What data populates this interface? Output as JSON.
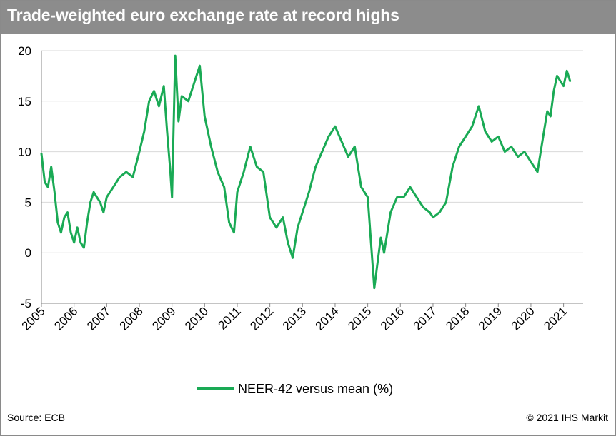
{
  "title": "Trade-weighted euro exchange rate at record highs",
  "source": "Source: ECB",
  "copyright": "© 2021 IHS Markit",
  "colors": {
    "title_bg": "#8c8c8c",
    "series": "#1aaa55",
    "grid": "#d9d9d9"
  },
  "chart_data": {
    "type": "line",
    "title": "Trade-weighted euro exchange rate at record highs",
    "xlabel": "",
    "ylabel": "",
    "xlim": [
      2005,
      2021.6
    ],
    "ylim": [
      -5,
      20
    ],
    "yticks": [
      -5,
      0,
      5,
      10,
      15,
      20
    ],
    "xticks": [
      "2005",
      "2006",
      "2007",
      "2008",
      "2009",
      "2010",
      "2011",
      "2012",
      "2013",
      "2014",
      "2015",
      "2016",
      "2017",
      "2018",
      "2019",
      "2020",
      "2021"
    ],
    "grid": "horizontal",
    "legend_position": "bottom",
    "series": [
      {
        "name": "NEER-42 versus mean (%)",
        "color": "#1aaa55",
        "x": [
          2005.0,
          2005.1,
          2005.2,
          2005.3,
          2005.4,
          2005.5,
          2005.6,
          2005.7,
          2005.8,
          2005.9,
          2006.0,
          2006.1,
          2006.2,
          2006.3,
          2006.4,
          2006.5,
          2006.6,
          2006.7,
          2006.8,
          2006.9,
          2007.0,
          2007.2,
          2007.4,
          2007.6,
          2007.8,
          2008.0,
          2008.15,
          2008.3,
          2008.45,
          2008.6,
          2008.75,
          2008.85,
          2008.95,
          2009.0,
          2009.1,
          2009.2,
          2009.3,
          2009.5,
          2009.7,
          2009.85,
          2010.0,
          2010.2,
          2010.4,
          2010.6,
          2010.75,
          2010.9,
          2011.0,
          2011.2,
          2011.4,
          2011.6,
          2011.8,
          2012.0,
          2012.2,
          2012.4,
          2012.55,
          2012.7,
          2012.85,
          2013.0,
          2013.2,
          2013.4,
          2013.6,
          2013.8,
          2014.0,
          2014.2,
          2014.4,
          2014.6,
          2014.8,
          2015.0,
          2015.1,
          2015.2,
          2015.3,
          2015.4,
          2015.5,
          2015.7,
          2015.9,
          2016.1,
          2016.3,
          2016.5,
          2016.7,
          2016.9,
          2017.0,
          2017.2,
          2017.4,
          2017.6,
          2017.8,
          2018.0,
          2018.2,
          2018.4,
          2018.6,
          2018.8,
          2019.0,
          2019.2,
          2019.4,
          2019.6,
          2019.8,
          2020.0,
          2020.2,
          2020.4,
          2020.5,
          2020.6,
          2020.7,
          2020.8,
          2020.9,
          2021.0,
          2021.1,
          2021.2
        ],
        "values": [
          9.8,
          7.0,
          6.5,
          8.5,
          6.0,
          3.0,
          2.0,
          3.5,
          4.0,
          2.0,
          1.0,
          2.5,
          1.0,
          0.5,
          3.0,
          5.0,
          6.0,
          5.5,
          5.0,
          4.0,
          5.5,
          6.5,
          7.5,
          8.0,
          7.5,
          10.0,
          12.0,
          15.0,
          16.0,
          14.5,
          16.5,
          12.0,
          8.0,
          5.5,
          19.5,
          13.0,
          15.5,
          15.0,
          17.0,
          18.5,
          13.5,
          10.5,
          8.0,
          6.5,
          3.0,
          2.0,
          6.0,
          8.0,
          10.5,
          8.5,
          8.0,
          3.5,
          2.5,
          3.5,
          1.0,
          -0.5,
          2.5,
          4.0,
          6.0,
          8.5,
          10.0,
          11.5,
          12.5,
          11.0,
          9.5,
          10.5,
          6.5,
          5.5,
          1.0,
          -3.5,
          -1.0,
          1.5,
          0.0,
          4.0,
          5.5,
          5.5,
          6.5,
          5.5,
          4.5,
          4.0,
          3.5,
          4.0,
          5.0,
          8.5,
          10.5,
          11.5,
          12.5,
          14.5,
          12.0,
          11.0,
          11.5,
          10.0,
          10.5,
          9.5,
          10.0,
          9.0,
          8.0,
          12.0,
          14.0,
          13.5,
          16.0,
          17.5,
          17.0,
          16.5,
          18.0,
          17.0
        ]
      }
    ]
  }
}
